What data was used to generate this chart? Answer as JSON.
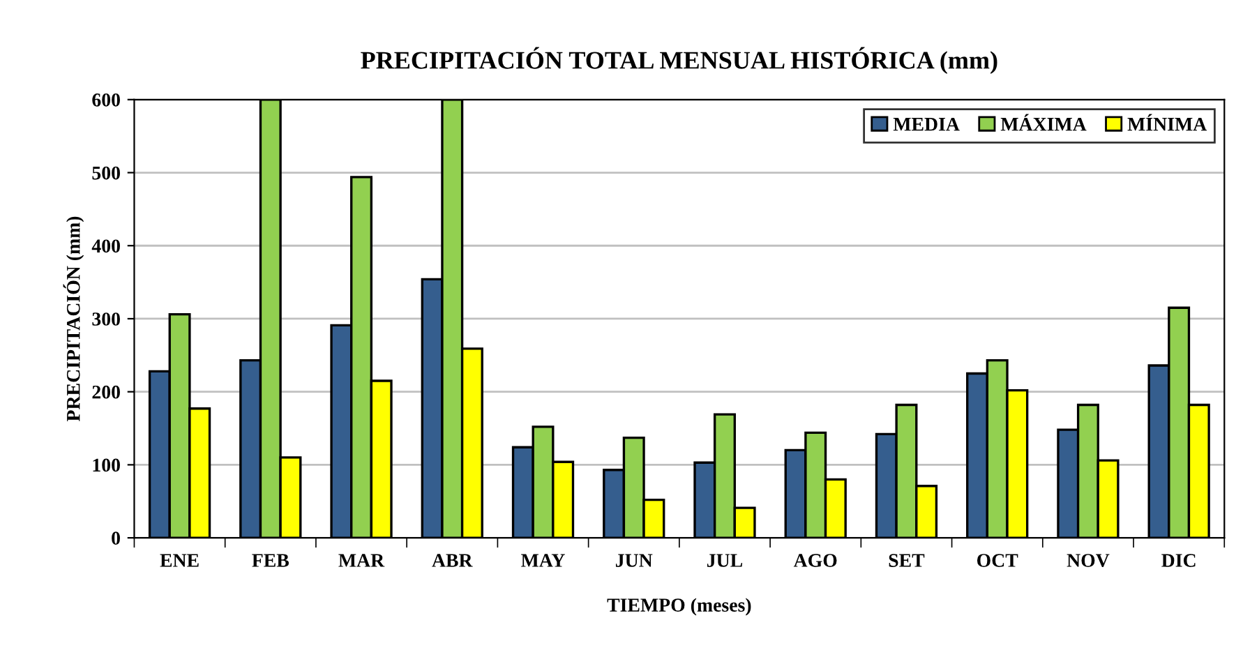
{
  "chart_data": {
    "type": "bar",
    "title": "PRECIPITACIÓN TOTAL MENSUAL HISTÓRICA (mm)",
    "xlabel": "TIEMPO (meses)",
    "ylabel": "PRECIPITACIÓN (mm)",
    "categories": [
      "ENE",
      "FEB",
      "MAR",
      "ABR",
      "MAY",
      "JUN",
      "JUL",
      "AGO",
      "SET",
      "OCT",
      "NOV",
      "DIC"
    ],
    "series": [
      {
        "name": "MEDIA",
        "color": "#355e8e",
        "values": [
          228,
          243,
          291,
          354,
          124,
          93,
          103,
          120,
          142,
          225,
          148,
          236
        ]
      },
      {
        "name": "MÁXIMA",
        "color": "#92d050",
        "values": [
          306,
          600,
          494,
          600,
          152,
          137,
          169,
          144,
          182,
          243,
          182,
          315
        ]
      },
      {
        "name": "MÍNIMA",
        "color": "#ffff00",
        "values": [
          177,
          110,
          215,
          259,
          104,
          52,
          41,
          80,
          71,
          202,
          106,
          182
        ]
      }
    ],
    "ylim": [
      0,
      600
    ],
    "yticks": [
      0,
      100,
      200,
      300,
      400,
      500,
      600
    ],
    "grid": "y",
    "legend": "top right"
  }
}
